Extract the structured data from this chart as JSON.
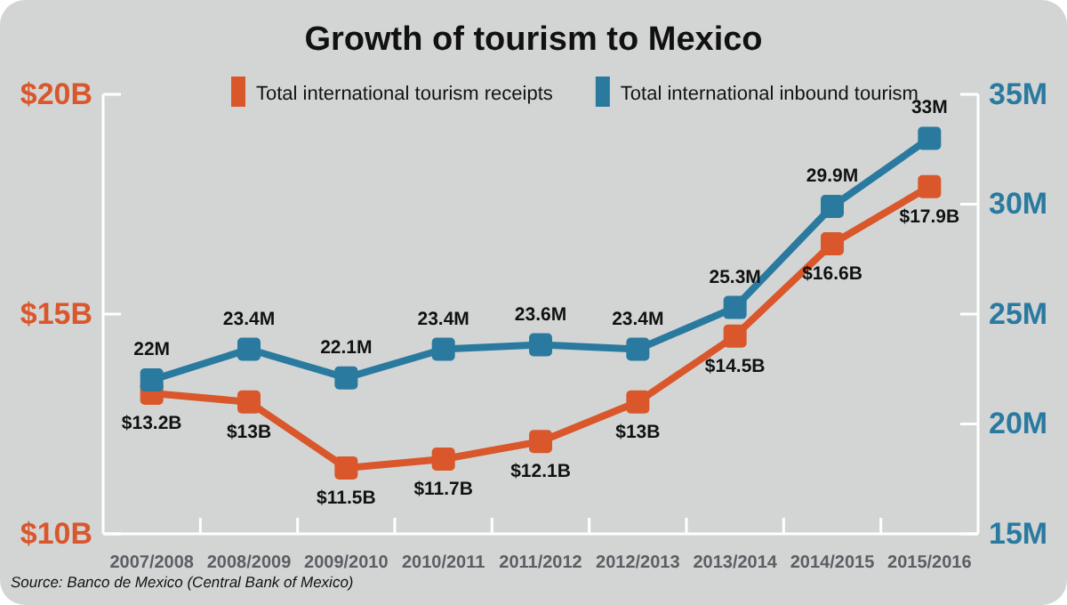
{
  "chart_data": {
    "type": "line",
    "title": "Growth of tourism to Mexico",
    "categories": [
      "2007/2008",
      "2008/2009",
      "2009/2010",
      "2010/2011",
      "2011/2012",
      "2012/2013",
      "2013/2014",
      "2014/2015",
      "2015/2016"
    ],
    "series": [
      {
        "name": "Total international tourism receipts",
        "color": "#d9572b",
        "values": [
          13.2,
          13,
          11.5,
          11.7,
          12.1,
          13,
          14.5,
          16.6,
          17.9
        ],
        "value_labels": [
          "$13.2B",
          "$13B",
          "$11.5B",
          "$11.7B",
          "$12.1B",
          "$13B",
          "$14.5B",
          "$16.6B",
          "$17.9B"
        ]
      },
      {
        "name": "Total international inbound tourism",
        "color": "#2a7aa0",
        "axis": "y2",
        "values": [
          22,
          23.4,
          22.1,
          23.4,
          23.6,
          23.4,
          25.3,
          29.9,
          33
        ],
        "value_labels": [
          "22M",
          "23.4M",
          "22.1M",
          "23.4M",
          "23.6M",
          "23.4M",
          "25.3M",
          "29.9M",
          "33M"
        ]
      }
    ],
    "ylim": [
      10,
      20
    ],
    "yticks": [
      {
        "value": 10,
        "label": "$10B"
      },
      {
        "value": 15,
        "label": "$15B"
      },
      {
        "value": 20,
        "label": "$20B"
      }
    ],
    "y2lim": [
      15,
      35
    ],
    "y2ticks": [
      {
        "value": 15,
        "label": "15M"
      },
      {
        "value": 20,
        "label": "20M"
      },
      {
        "value": 25,
        "label": "25M"
      },
      {
        "value": 30,
        "label": "30M"
      },
      {
        "value": 35,
        "label": "35M"
      }
    ],
    "marker": "square",
    "line_style": "solid",
    "grid": false,
    "legend": "top",
    "annotations": [
      "Source: Banco de Mexico (Central Bank of Mexico)"
    ]
  }
}
